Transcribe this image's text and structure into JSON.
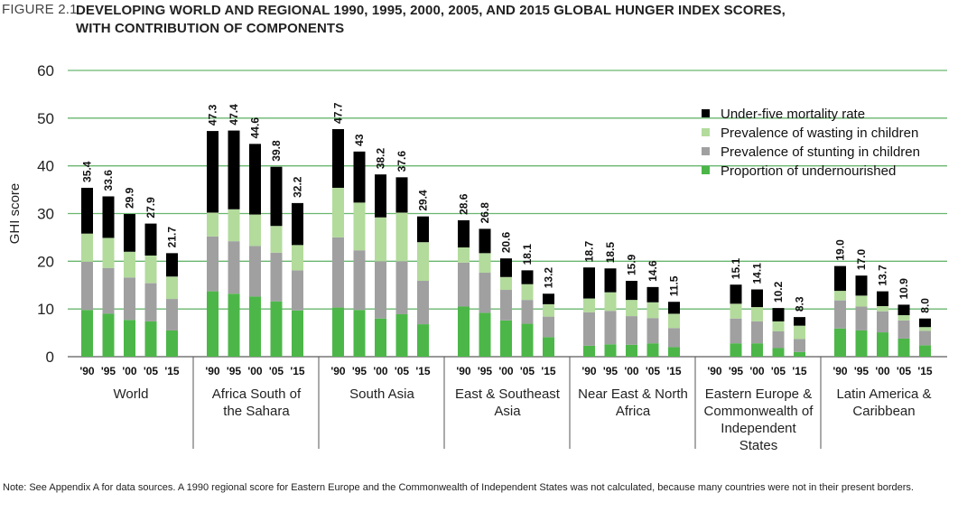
{
  "header": {
    "figure_label": "FIGURE 2.1",
    "title_line1": "DEVELOPING WORLD AND REGIONAL 1990, 1995, 2000, 2005, AND 2015 GLOBAL HUNGER INDEX SCORES,",
    "title_line2": "WITH CONTRIBUTION OF COMPONENTS"
  },
  "footnote": "Note: See Appendix A for data sources. A 1990 regional score for Eastern Europe and the Commonwealth of Independent States was not calculated, because many countries were not in their present borders.",
  "chart_data": {
    "type": "bar",
    "stacked": true,
    "title": "Developing world and regional 1990, 1995, 2000, 2005, and 2015 Global Hunger Index scores, with contribution of components",
    "ylabel": "GHI score",
    "ylim": [
      0,
      60
    ],
    "yticks": [
      0,
      10,
      20,
      30,
      40,
      50,
      60
    ],
    "grid": true,
    "legend_position": "top-right",
    "year_labels": [
      "'90",
      "'95",
      "'00",
      "'05",
      "'15"
    ],
    "series_names": [
      "Proportion of undernourished",
      "Prevalence of stunting in children",
      "Prevalence of wasting in children",
      "Under-five mortality rate"
    ],
    "legend_order": [
      3,
      2,
      1,
      0
    ],
    "colors": [
      "#4cb748",
      "#a0a0a1",
      "#b3db9c",
      "#000000"
    ],
    "groups": [
      {
        "name_lines": [
          "World"
        ],
        "totals": [
          "35.4",
          "33.6",
          "29.9",
          "27.9",
          "21.7"
        ],
        "bars": [
          [
            9.8,
            10.1,
            5.9,
            9.6
          ],
          [
            9.0,
            9.6,
            6.3,
            8.7
          ],
          [
            7.7,
            8.9,
            5.4,
            7.9
          ],
          [
            7.4,
            8.0,
            5.8,
            6.7
          ],
          [
            5.5,
            6.6,
            4.7,
            4.9
          ]
        ]
      },
      {
        "name_lines": [
          "Africa South of",
          "the Sahara"
        ],
        "totals": [
          "47.3",
          "47.4",
          "44.6",
          "39.8",
          "32.2"
        ],
        "bars": [
          [
            13.7,
            11.5,
            5.0,
            17.1
          ],
          [
            13.2,
            11.0,
            6.7,
            16.5
          ],
          [
            12.6,
            10.6,
            6.6,
            14.8
          ],
          [
            11.6,
            10.2,
            5.6,
            12.4
          ],
          [
            9.7,
            8.4,
            5.3,
            8.8
          ]
        ]
      },
      {
        "name_lines": [
          "South Asia"
        ],
        "totals": [
          "47.7",
          "43",
          "38.2",
          "37.6",
          "29.4"
        ],
        "bars": [
          [
            10.3,
            14.7,
            10.4,
            12.3
          ],
          [
            9.8,
            12.5,
            10.0,
            10.7
          ],
          [
            8.0,
            12.0,
            9.2,
            9.0
          ],
          [
            8.9,
            11.1,
            10.2,
            7.4
          ],
          [
            6.8,
            9.1,
            8.1,
            5.4
          ]
        ]
      },
      {
        "name_lines": [
          "East & Southeast",
          "Asia"
        ],
        "totals": [
          "28.6",
          "26.8",
          "20.6",
          "18.1",
          "13.2"
        ],
        "bars": [
          [
            10.5,
            9.2,
            3.2,
            5.7
          ],
          [
            9.2,
            8.4,
            4.1,
            5.1
          ],
          [
            7.6,
            6.4,
            2.7,
            3.9
          ],
          [
            6.9,
            5.0,
            3.3,
            2.9
          ],
          [
            4.1,
            4.3,
            2.6,
            2.2
          ]
        ]
      },
      {
        "name_lines": [
          "Near East & North",
          "Africa"
        ],
        "totals": [
          "18.7",
          "18.5",
          "15.9",
          "14.6",
          "11.5"
        ],
        "bars": [
          [
            2.3,
            7.0,
            2.9,
            6.5
          ],
          [
            2.6,
            7.0,
            3.9,
            5.0
          ],
          [
            2.5,
            6.0,
            3.4,
            4.0
          ],
          [
            2.8,
            5.3,
            3.3,
            3.2
          ],
          [
            2.0,
            4.0,
            3.0,
            2.5
          ]
        ]
      },
      {
        "name_lines": [
          "Eastern Europe &",
          "Commonwealth of",
          "Independent",
          "States"
        ],
        "totals": [
          "",
          "15.1",
          "14.1",
          "10.2",
          "8.3"
        ],
        "bars": [
          null,
          [
            2.8,
            5.2,
            3.1,
            4.0
          ],
          [
            2.8,
            4.6,
            3.0,
            3.7
          ],
          [
            1.8,
            3.5,
            2.1,
            2.8
          ],
          [
            1.0,
            2.7,
            2.8,
            1.8
          ]
        ]
      },
      {
        "name_lines": [
          "Latin America &",
          "Caribbean"
        ],
        "totals": [
          "19.0",
          "17.0",
          "13.7",
          "10.9",
          "8.0"
        ],
        "bars": [
          [
            5.9,
            5.9,
            2.0,
            5.2
          ],
          [
            5.5,
            5.0,
            2.3,
            4.2
          ],
          [
            5.1,
            4.4,
            1.1,
            3.1
          ],
          [
            3.8,
            3.8,
            1.1,
            2.2
          ],
          [
            2.4,
            3.0,
            0.8,
            1.8
          ]
        ]
      }
    ]
  }
}
